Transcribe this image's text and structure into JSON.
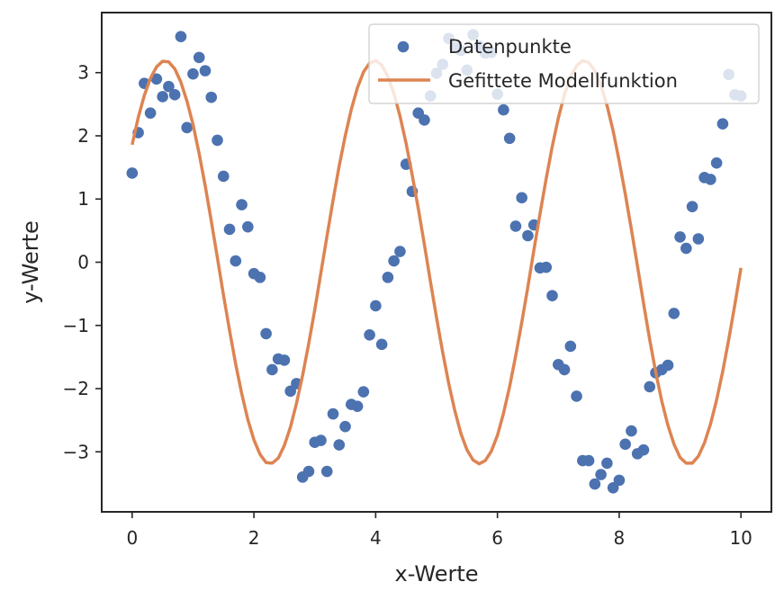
{
  "chart_data": {
    "type": "scatter",
    "xlabel": "x-Werte",
    "ylabel": "y-Werte",
    "xlim": [
      -0.5,
      10.5
    ],
    "ylim": [
      -3.95,
      3.95
    ],
    "xticks": [
      0,
      2,
      4,
      6,
      8,
      10
    ],
    "yticks": [
      -3,
      -2,
      -1,
      0,
      1,
      2,
      3
    ],
    "ytick_labels": [
      "−3",
      "−2",
      "−1",
      "0",
      "1",
      "2",
      "3"
    ],
    "grid": false,
    "legend_position": "top-right",
    "colors": {
      "points": "#4c72b0",
      "line": "#dd8452",
      "frame": "#262626"
    },
    "series": [
      {
        "name": "Datenpunkte",
        "kind": "scatter",
        "x": [
          0,
          0.1,
          0.2,
          0.3,
          0.4,
          0.5,
          0.6,
          0.7,
          0.8,
          0.9,
          1.0,
          1.1,
          1.2,
          1.3,
          1.4,
          1.5,
          1.6,
          1.7,
          1.8,
          1.9,
          2.0,
          2.1,
          2.2,
          2.3,
          2.4,
          2.5,
          2.6,
          2.7,
          2.8,
          2.9,
          3.0,
          3.1,
          3.2,
          3.3,
          3.4,
          3.5,
          3.6,
          3.7,
          3.8,
          3.9,
          4.0,
          4.1,
          4.2,
          4.3,
          4.4,
          4.5,
          4.6,
          4.7,
          4.8,
          4.9,
          5.0,
          5.1,
          5.2,
          5.3,
          5.4,
          5.5,
          5.6,
          5.7,
          5.8,
          5.9,
          6.0,
          6.1,
          6.2,
          6.3,
          6.4,
          6.5,
          6.6,
          6.7,
          6.8,
          6.9,
          7.0,
          7.1,
          7.2,
          7.3,
          7.4,
          7.5,
          7.6,
          7.7,
          7.8,
          7.9,
          8.0,
          8.1,
          8.2,
          8.3,
          8.4,
          8.5,
          8.6,
          8.7,
          8.8,
          8.9,
          9.0,
          9.1,
          9.2,
          9.3,
          9.4,
          9.5,
          9.6,
          9.7,
          9.8,
          9.9,
          10.0
        ],
        "y": [
          1.41,
          2.05,
          2.83,
          2.36,
          2.9,
          2.62,
          2.78,
          2.65,
          3.57,
          2.13,
          2.98,
          3.24,
          3.03,
          2.61,
          1.93,
          1.36,
          0.52,
          0.02,
          0.91,
          0.56,
          -0.18,
          -0.24,
          -1.13,
          -1.7,
          -1.53,
          -1.55,
          -2.04,
          -1.92,
          -3.4,
          -3.31,
          -2.85,
          -2.82,
          -3.31,
          -2.4,
          -2.89,
          -2.6,
          -2.25,
          -2.28,
          -2.05,
          -1.15,
          -0.69,
          -1.3,
          -0.24,
          0.02,
          0.17,
          1.55,
          1.12,
          2.36,
          2.25,
          2.63,
          2.99,
          3.13,
          3.54,
          3.4,
          3.35,
          3.04,
          3.6,
          3.42,
          3.31,
          3.32,
          2.66,
          2.41,
          1.96,
          0.57,
          1.02,
          0.42,
          0.59,
          -0.09,
          -0.08,
          -0.53,
          -1.62,
          -1.7,
          -1.33,
          -2.12,
          -3.14,
          -3.14,
          -3.51,
          -3.36,
          -3.18,
          -3.57,
          -3.45,
          -2.88,
          -2.67,
          -3.03,
          -2.97,
          -1.97,
          -1.75,
          -1.7,
          -1.63,
          -0.81,
          0.4,
          0.22,
          0.88,
          0.37,
          1.34,
          1.31,
          1.57,
          2.19,
          2.97,
          2.65,
          2.63
        ]
      },
      {
        "name": "Gefittete Modellfunktion",
        "kind": "line",
        "x": [
          0,
          0.1,
          0.2,
          0.3,
          0.4,
          0.5,
          0.6,
          0.7,
          0.8,
          0.9,
          1.0,
          1.1,
          1.2,
          1.3,
          1.4,
          1.5,
          1.6,
          1.7,
          1.8,
          1.9,
          2.0,
          2.1,
          2.2,
          2.3,
          2.4,
          2.5,
          2.6,
          2.7,
          2.8,
          2.9,
          3.0,
          3.1,
          3.2,
          3.3,
          3.4,
          3.5,
          3.6,
          3.7,
          3.8,
          3.9,
          4.0,
          4.1,
          4.2,
          4.3,
          4.4,
          4.5,
          4.6,
          4.7,
          4.8,
          4.9,
          5.0,
          5.1,
          5.2,
          5.3,
          5.4,
          5.5,
          5.6,
          5.7,
          5.8,
          5.9,
          6.0,
          6.1,
          6.2,
          6.3,
          6.4,
          6.5,
          6.6,
          6.7,
          6.8,
          6.9,
          7.0,
          7.1,
          7.2,
          7.3,
          7.4,
          7.5,
          7.6,
          7.7,
          7.8,
          7.9,
          8.0,
          8.1,
          8.2,
          8.3,
          8.4,
          8.5,
          8.6,
          8.7,
          8.8,
          8.9,
          9.0,
          9.1,
          9.2,
          9.3,
          9.4,
          9.5,
          9.6,
          9.7,
          9.8,
          9.9,
          10.0
        ],
        "y": [
          1.86,
          2.29,
          2.64,
          2.91,
          3.09,
          3.18,
          3.17,
          3.06,
          2.85,
          2.55,
          2.18,
          1.72,
          1.21,
          0.65,
          0.07,
          -0.52,
          -1.08,
          -1.61,
          -2.08,
          -2.49,
          -2.81,
          -3.04,
          -3.17,
          -3.18,
          -3.1,
          -2.9,
          -2.61,
          -2.23,
          -1.79,
          -1.29,
          -0.75,
          -0.17,
          0.41,
          0.98,
          1.52,
          2.0,
          2.42,
          2.76,
          3.01,
          3.15,
          3.19,
          3.12,
          2.94,
          2.67,
          2.31,
          1.88,
          1.38,
          0.85,
          0.28,
          -0.31,
          -0.88,
          -1.42,
          -1.92,
          -2.35,
          -2.71,
          -2.97,
          -3.13,
          -3.19,
          -3.14,
          -2.99,
          -2.74,
          -2.39,
          -1.97,
          -1.48,
          -0.95,
          -0.39,
          0.2,
          0.77,
          1.32,
          1.83,
          2.28,
          2.65,
          2.93,
          3.11,
          3.19,
          3.16,
          3.03,
          2.8,
          2.48,
          2.08,
          1.6,
          1.08,
          0.52,
          -0.06,
          -0.65,
          -1.22,
          -1.74,
          -2.2,
          -2.58,
          -2.88,
          -3.09,
          -3.18,
          -3.18,
          -3.07,
          -2.86,
          -2.56,
          -2.18,
          -1.73,
          -1.22,
          -0.67,
          -0.09
        ]
      }
    ]
  }
}
